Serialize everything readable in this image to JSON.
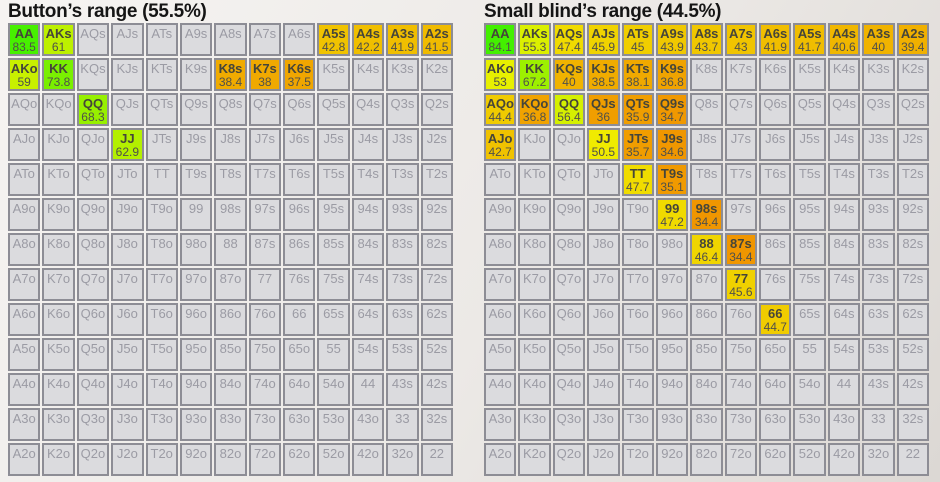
{
  "theme": {
    "page_bg": "#ece9e6",
    "title_color": "#151515",
    "cell_border": "#8d8d95",
    "inactive_bg": "#dbdbde",
    "inactive_text": "#9b9ba4",
    "active_label": "#45453a",
    "active_value": "#50504a",
    "green_high": "#43F000",
    "yellow_mid": "#F0EB00",
    "orange_low": "#F09600"
  },
  "chart_data": [
    {
      "type": "heatmap",
      "title": "Button’s range (55.5%)",
      "rows": [
        [
          {
            "h": "AA",
            "v": "83.5",
            "c": "#47F000"
          },
          {
            "h": "AKs",
            "v": "61",
            "c": "#BDF000"
          },
          {
            "h": "AQs"
          },
          {
            "h": "AJs"
          },
          {
            "h": "ATs"
          },
          {
            "h": "A9s"
          },
          {
            "h": "A8s"
          },
          {
            "h": "A7s"
          },
          {
            "h": "A6s"
          },
          {
            "h": "A5s",
            "v": "42.8",
            "c": "#F0C300"
          },
          {
            "h": "A4s",
            "v": "42.2",
            "c": "#F0BF00"
          },
          {
            "h": "A3s",
            "v": "41.9",
            "c": "#F0BE00"
          },
          {
            "h": "A2s",
            "v": "41.5",
            "c": "#F0BB00"
          }
        ],
        [
          {
            "h": "AKo",
            "v": "59",
            "c": "#C8F000"
          },
          {
            "h": "KK",
            "v": "73.8",
            "c": "#7AF000"
          },
          {
            "h": "KQs"
          },
          {
            "h": "KJs"
          },
          {
            "h": "KTs"
          },
          {
            "h": "K9s"
          },
          {
            "h": "K8s",
            "v": "38.4",
            "c": "#F0AB00"
          },
          {
            "h": "K7s",
            "v": "38",
            "c": "#F0A900"
          },
          {
            "h": "K6s",
            "v": "37.5",
            "c": "#F0A600"
          },
          {
            "h": "K5s"
          },
          {
            "h": "K4s"
          },
          {
            "h": "K3s"
          },
          {
            "h": "K2s"
          }
        ],
        [
          {
            "h": "AQo"
          },
          {
            "h": "KQo"
          },
          {
            "h": "QQ",
            "v": "68.3",
            "c": "#97F000"
          },
          {
            "h": "QJs"
          },
          {
            "h": "QTs"
          },
          {
            "h": "Q9s"
          },
          {
            "h": "Q8s"
          },
          {
            "h": "Q7s"
          },
          {
            "h": "Q6s"
          },
          {
            "h": "Q5s"
          },
          {
            "h": "Q4s"
          },
          {
            "h": "Q3s"
          },
          {
            "h": "Q2s"
          }
        ],
        [
          {
            "h": "AJo"
          },
          {
            "h": "KJo"
          },
          {
            "h": "QJo"
          },
          {
            "h": "JJ",
            "v": "62.9",
            "c": "#B3F000"
          },
          {
            "h": "JTs"
          },
          {
            "h": "J9s"
          },
          {
            "h": "J8s"
          },
          {
            "h": "J7s"
          },
          {
            "h": "J6s"
          },
          {
            "h": "J5s"
          },
          {
            "h": "J4s"
          },
          {
            "h": "J3s"
          },
          {
            "h": "J2s"
          }
        ],
        [
          {
            "h": "ATo"
          },
          {
            "h": "KTo"
          },
          {
            "h": "QTo"
          },
          {
            "h": "JTo"
          },
          {
            "h": "TT"
          },
          {
            "h": "T9s"
          },
          {
            "h": "T8s"
          },
          {
            "h": "T7s"
          },
          {
            "h": "T6s"
          },
          {
            "h": "T5s"
          },
          {
            "h": "T4s"
          },
          {
            "h": "T3s"
          },
          {
            "h": "T2s"
          }
        ],
        [
          {
            "h": "A9o"
          },
          {
            "h": "K9o"
          },
          {
            "h": "Q9o"
          },
          {
            "h": "J9o"
          },
          {
            "h": "T9o"
          },
          {
            "h": "99"
          },
          {
            "h": "98s"
          },
          {
            "h": "97s"
          },
          {
            "h": "96s"
          },
          {
            "h": "95s"
          },
          {
            "h": "94s"
          },
          {
            "h": "93s"
          },
          {
            "h": "92s"
          }
        ],
        [
          {
            "h": "A8o"
          },
          {
            "h": "K8o"
          },
          {
            "h": "Q8o"
          },
          {
            "h": "J8o"
          },
          {
            "h": "T8o"
          },
          {
            "h": "98o"
          },
          {
            "h": "88"
          },
          {
            "h": "87s"
          },
          {
            "h": "86s"
          },
          {
            "h": "85s"
          },
          {
            "h": "84s"
          },
          {
            "h": "83s"
          },
          {
            "h": "82s"
          }
        ],
        [
          {
            "h": "A7o"
          },
          {
            "h": "K7o"
          },
          {
            "h": "Q7o"
          },
          {
            "h": "J7o"
          },
          {
            "h": "T7o"
          },
          {
            "h": "97o"
          },
          {
            "h": "87o"
          },
          {
            "h": "77"
          },
          {
            "h": "76s"
          },
          {
            "h": "75s"
          },
          {
            "h": "74s"
          },
          {
            "h": "73s"
          },
          {
            "h": "72s"
          }
        ],
        [
          {
            "h": "A6o"
          },
          {
            "h": "K6o"
          },
          {
            "h": "Q6o"
          },
          {
            "h": "J6o"
          },
          {
            "h": "T6o"
          },
          {
            "h": "96o"
          },
          {
            "h": "86o"
          },
          {
            "h": "76o"
          },
          {
            "h": "66"
          },
          {
            "h": "65s"
          },
          {
            "h": "64s"
          },
          {
            "h": "63s"
          },
          {
            "h": "62s"
          }
        ],
        [
          {
            "h": "A5o"
          },
          {
            "h": "K5o"
          },
          {
            "h": "Q5o"
          },
          {
            "h": "J5o"
          },
          {
            "h": "T5o"
          },
          {
            "h": "95o"
          },
          {
            "h": "85o"
          },
          {
            "h": "75o"
          },
          {
            "h": "65o"
          },
          {
            "h": "55"
          },
          {
            "h": "54s"
          },
          {
            "h": "53s"
          },
          {
            "h": "52s"
          }
        ],
        [
          {
            "h": "A4o"
          },
          {
            "h": "K4o"
          },
          {
            "h": "Q4o"
          },
          {
            "h": "J4o"
          },
          {
            "h": "T4o"
          },
          {
            "h": "94o"
          },
          {
            "h": "84o"
          },
          {
            "h": "74o"
          },
          {
            "h": "64o"
          },
          {
            "h": "54o"
          },
          {
            "h": "44"
          },
          {
            "h": "43s"
          },
          {
            "h": "42s"
          }
        ],
        [
          {
            "h": "A3o"
          },
          {
            "h": "K3o"
          },
          {
            "h": "Q3o"
          },
          {
            "h": "J3o"
          },
          {
            "h": "T3o"
          },
          {
            "h": "93o"
          },
          {
            "h": "83o"
          },
          {
            "h": "73o"
          },
          {
            "h": "63o"
          },
          {
            "h": "53o"
          },
          {
            "h": "43o"
          },
          {
            "h": "33"
          },
          {
            "h": "32s"
          }
        ],
        [
          {
            "h": "A2o"
          },
          {
            "h": "K2o"
          },
          {
            "h": "Q2o"
          },
          {
            "h": "J2o"
          },
          {
            "h": "T2o"
          },
          {
            "h": "92o"
          },
          {
            "h": "82o"
          },
          {
            "h": "72o"
          },
          {
            "h": "62o"
          },
          {
            "h": "52o"
          },
          {
            "h": "42o"
          },
          {
            "h": "32o"
          },
          {
            "h": "22"
          }
        ]
      ]
    },
    {
      "type": "heatmap",
      "title": "Small blind’s range (44.5%)",
      "rows": [
        [
          {
            "h": "AA",
            "v": "84.1",
            "c": "#43F000"
          },
          {
            "h": "AKs",
            "v": "55.3",
            "c": "#DBF000"
          },
          {
            "h": "AQs",
            "v": "47.4",
            "c": "#F0DB00"
          },
          {
            "h": "AJs",
            "v": "45.9",
            "c": "#F0D300"
          },
          {
            "h": "ATs",
            "v": "45",
            "c": "#F0CE00"
          },
          {
            "h": "A9s",
            "v": "43.9",
            "c": "#F0C800"
          },
          {
            "h": "A8s",
            "v": "43.7",
            "c": "#F0C700"
          },
          {
            "h": "A7s",
            "v": "43",
            "c": "#F0C400"
          },
          {
            "h": "A6s",
            "v": "41.9",
            "c": "#F0BE00"
          },
          {
            "h": "A5s",
            "v": "41.7",
            "c": "#F0BD00"
          },
          {
            "h": "A4s",
            "v": "40.6",
            "c": "#F0B700"
          },
          {
            "h": "A3s",
            "v": "40",
            "c": "#F0B300"
          },
          {
            "h": "A2s",
            "v": "39.4",
            "c": "#F0B000"
          }
        ],
        [
          {
            "h": "AKo",
            "v": "53",
            "c": "#E7F000"
          },
          {
            "h": "KK",
            "v": "67.2",
            "c": "#9DF000"
          },
          {
            "h": "KQs",
            "v": "40",
            "c": "#F0B300"
          },
          {
            "h": "KJs",
            "v": "38.5",
            "c": "#F0AC00"
          },
          {
            "h": "KTs",
            "v": "38.1",
            "c": "#F0A900"
          },
          {
            "h": "K9s",
            "v": "36.8",
            "c": "#F0A300"
          },
          {
            "h": "K8s"
          },
          {
            "h": "K7s"
          },
          {
            "h": "K6s"
          },
          {
            "h": "K5s"
          },
          {
            "h": "K4s"
          },
          {
            "h": "K3s"
          },
          {
            "h": "K2s"
          }
        ],
        [
          {
            "h": "AQo",
            "v": "44.4",
            "c": "#F0CB00"
          },
          {
            "h": "KQo",
            "v": "36.8",
            "c": "#F0A300"
          },
          {
            "h": "QQ",
            "v": "56.4",
            "c": "#D5F000"
          },
          {
            "h": "QJs",
            "v": "36",
            "c": "#F09E00"
          },
          {
            "h": "QTs",
            "v": "35.9",
            "c": "#F09E00"
          },
          {
            "h": "Q9s",
            "v": "34.7",
            "c": "#F09800"
          },
          {
            "h": "Q8s"
          },
          {
            "h": "Q7s"
          },
          {
            "h": "Q6s"
          },
          {
            "h": "Q5s"
          },
          {
            "h": "Q4s"
          },
          {
            "h": "Q3s"
          },
          {
            "h": "Q2s"
          }
        ],
        [
          {
            "h": "AJo",
            "v": "42.7",
            "c": "#F0C200"
          },
          {
            "h": "KJo"
          },
          {
            "h": "QJo"
          },
          {
            "h": "JJ",
            "v": "50.5",
            "c": "#F0EB00"
          },
          {
            "h": "JTs",
            "v": "35.7",
            "c": "#F09D00"
          },
          {
            "h": "J9s",
            "v": "34.6",
            "c": "#F09700"
          },
          {
            "h": "J8s"
          },
          {
            "h": "J7s"
          },
          {
            "h": "J6s"
          },
          {
            "h": "J5s"
          },
          {
            "h": "J4s"
          },
          {
            "h": "J3s"
          },
          {
            "h": "J2s"
          }
        ],
        [
          {
            "h": "ATo"
          },
          {
            "h": "KTo"
          },
          {
            "h": "QTo"
          },
          {
            "h": "JTo"
          },
          {
            "h": "TT",
            "v": "47.7",
            "c": "#F0DC00"
          },
          {
            "h": "T9s",
            "v": "35.1",
            "c": "#F09A00"
          },
          {
            "h": "T8s"
          },
          {
            "h": "T7s"
          },
          {
            "h": "T6s"
          },
          {
            "h": "T5s"
          },
          {
            "h": "T4s"
          },
          {
            "h": "T3s"
          },
          {
            "h": "T2s"
          }
        ],
        [
          {
            "h": "A9o"
          },
          {
            "h": "K9o"
          },
          {
            "h": "Q9o"
          },
          {
            "h": "J9o"
          },
          {
            "h": "T9o"
          },
          {
            "h": "99",
            "v": "47.2",
            "c": "#F0DA00"
          },
          {
            "h": "98s",
            "v": "34.4",
            "c": "#F09600"
          },
          {
            "h": "97s"
          },
          {
            "h": "96s"
          },
          {
            "h": "95s"
          },
          {
            "h": "94s"
          },
          {
            "h": "93s"
          },
          {
            "h": "92s"
          }
        ],
        [
          {
            "h": "A8o"
          },
          {
            "h": "K8o"
          },
          {
            "h": "Q8o"
          },
          {
            "h": "J8o"
          },
          {
            "h": "T8o"
          },
          {
            "h": "98o"
          },
          {
            "h": "88",
            "v": "46.4",
            "c": "#F0D500"
          },
          {
            "h": "87s",
            "v": "34.4",
            "c": "#F09600"
          },
          {
            "h": "86s"
          },
          {
            "h": "85s"
          },
          {
            "h": "84s"
          },
          {
            "h": "83s"
          },
          {
            "h": "82s"
          }
        ],
        [
          {
            "h": "A7o"
          },
          {
            "h": "K7o"
          },
          {
            "h": "Q7o"
          },
          {
            "h": "J7o"
          },
          {
            "h": "T7o"
          },
          {
            "h": "97o"
          },
          {
            "h": "87o"
          },
          {
            "h": "77",
            "v": "45.6",
            "c": "#F0D100"
          },
          {
            "h": "76s"
          },
          {
            "h": "75s"
          },
          {
            "h": "74s"
          },
          {
            "h": "73s"
          },
          {
            "h": "72s"
          }
        ],
        [
          {
            "h": "A6o"
          },
          {
            "h": "K6o"
          },
          {
            "h": "Q6o"
          },
          {
            "h": "J6o"
          },
          {
            "h": "T6o"
          },
          {
            "h": "96o"
          },
          {
            "h": "86o"
          },
          {
            "h": "76o"
          },
          {
            "h": "66",
            "v": "44.7",
            "c": "#F0CC00"
          },
          {
            "h": "65s"
          },
          {
            "h": "64s"
          },
          {
            "h": "63s"
          },
          {
            "h": "62s"
          }
        ],
        [
          {
            "h": "A5o"
          },
          {
            "h": "K5o"
          },
          {
            "h": "Q5o"
          },
          {
            "h": "J5o"
          },
          {
            "h": "T5o"
          },
          {
            "h": "95o"
          },
          {
            "h": "85o"
          },
          {
            "h": "75o"
          },
          {
            "h": "65o"
          },
          {
            "h": "55"
          },
          {
            "h": "54s"
          },
          {
            "h": "53s"
          },
          {
            "h": "52s"
          }
        ],
        [
          {
            "h": "A4o"
          },
          {
            "h": "K4o"
          },
          {
            "h": "Q4o"
          },
          {
            "h": "J4o"
          },
          {
            "h": "T4o"
          },
          {
            "h": "94o"
          },
          {
            "h": "84o"
          },
          {
            "h": "74o"
          },
          {
            "h": "64o"
          },
          {
            "h": "54o"
          },
          {
            "h": "44"
          },
          {
            "h": "43s"
          },
          {
            "h": "42s"
          }
        ],
        [
          {
            "h": "A3o"
          },
          {
            "h": "K3o"
          },
          {
            "h": "Q3o"
          },
          {
            "h": "J3o"
          },
          {
            "h": "T3o"
          },
          {
            "h": "93o"
          },
          {
            "h": "83o"
          },
          {
            "h": "73o"
          },
          {
            "h": "63o"
          },
          {
            "h": "53o"
          },
          {
            "h": "43o"
          },
          {
            "h": "33"
          },
          {
            "h": "32s"
          }
        ],
        [
          {
            "h": "A2o"
          },
          {
            "h": "K2o"
          },
          {
            "h": "Q2o"
          },
          {
            "h": "J2o"
          },
          {
            "h": "T2o"
          },
          {
            "h": "92o"
          },
          {
            "h": "82o"
          },
          {
            "h": "72o"
          },
          {
            "h": "62o"
          },
          {
            "h": "52o"
          },
          {
            "h": "42o"
          },
          {
            "h": "32o"
          },
          {
            "h": "22"
          }
        ]
      ]
    }
  ]
}
